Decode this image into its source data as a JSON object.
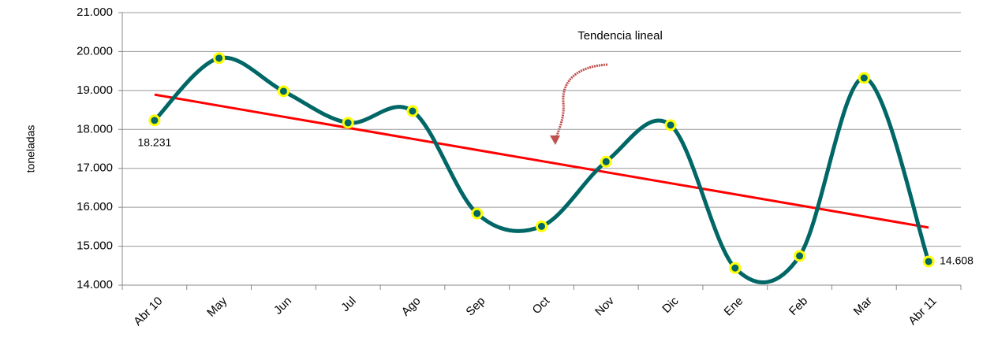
{
  "chart_data": {
    "type": "line",
    "y_label": "toneladas",
    "annotation": "Tendencia lineal",
    "categories": [
      "Abr 10",
      "May",
      "Jun",
      "Jul",
      "Ago",
      "Sep",
      "Oct",
      "Nov",
      "Dic",
      "Ene",
      "Feb",
      "Mar",
      "Abr 11"
    ],
    "series": [
      {
        "color": "#006666",
        "marker_color": "#ffff00",
        "trend_color": "#ff0000",
        "values": [
          18231,
          19830,
          18980,
          18170,
          18470,
          15840,
          15510,
          17170,
          18110,
          14440,
          14750,
          19320,
          14608
        ],
        "value_labels": [
          "18.231",
          null,
          null,
          null,
          null,
          null,
          null,
          null,
          null,
          null,
          null,
          null,
          "14.608"
        ]
      }
    ],
    "ylim": [
      14000,
      21000
    ],
    "yticks": [
      {
        "value": 14000,
        "label": "14.000"
      },
      {
        "value": 15000,
        "label": "15.000"
      },
      {
        "value": 16000,
        "label": "16.000"
      },
      {
        "value": 17000,
        "label": "17.000"
      },
      {
        "value": 18000,
        "label": "18.000"
      },
      {
        "value": 19000,
        "label": "19.000"
      },
      {
        "value": 20000,
        "label": "20.000"
      },
      {
        "value": 21000,
        "label": "21.000"
      }
    ],
    "grid": true,
    "trendline": true
  }
}
